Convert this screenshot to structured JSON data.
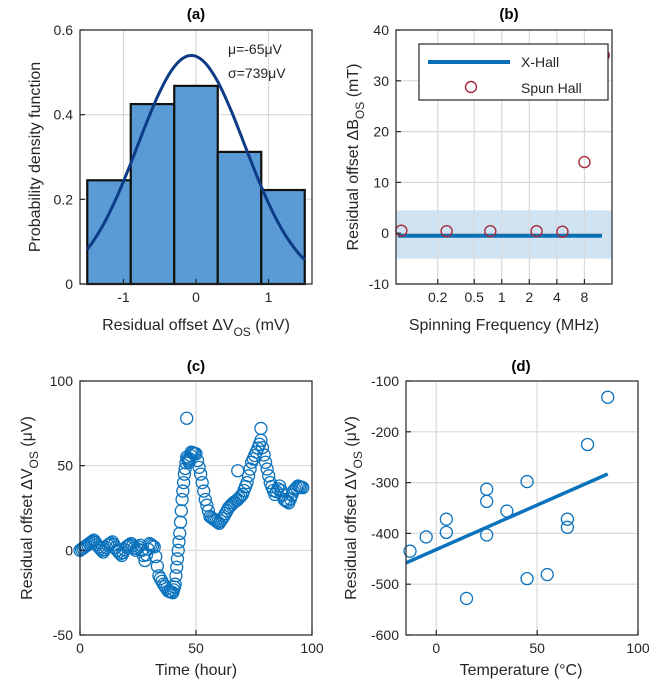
{
  "colors": {
    "bar_fill": "#5a9bd5",
    "bar_edge": "#111111",
    "fit_line": "#0d3b86",
    "xhall_line": "#0b6fb8",
    "band_fill": "#cfe3f3",
    "spun_marker": "#a42c3a",
    "scatter_marker": "#0b72bd",
    "grid": "#d9d9d9"
  },
  "chart_data": [
    {
      "id": "a",
      "type": "bar",
      "title": "(a)",
      "xlabel": "Residual offset ΔV",
      "xlabel_sub": "OS",
      "xlabel_unit": " (mV)",
      "ylabel": "Probability density function",
      "xlim": [
        -1.6,
        1.6
      ],
      "ylim": [
        0,
        0.6
      ],
      "xticks": [
        -1,
        0,
        1
      ],
      "xticklabels": [
        "-1",
        "0",
        "1"
      ],
      "yticks": [
        0,
        0.2,
        0.4,
        0.6
      ],
      "yticklabels": [
        "0",
        "0.2",
        "0.4",
        "0.6"
      ],
      "bin_edges": [
        -1.5,
        -0.9,
        -0.3,
        0.3,
        0.9,
        1.5
      ],
      "values": [
        0.245,
        0.425,
        0.468,
        0.312,
        0.222
      ],
      "fit": {
        "type": "normal",
        "mu_mV": -0.065,
        "sigma_mV": 0.739
      },
      "annotations": [
        "μ=-65μV",
        "σ=739μV"
      ],
      "grid": true
    },
    {
      "id": "b",
      "type": "scatter",
      "title": "(b)",
      "xlabel": "Spinning Frequency (MHz)",
      "ylabel": "Residual offset ΔB",
      "ylabel_sub": "OS",
      "ylabel_unit": " (mT)",
      "xscale": "log",
      "xlim": [
        0.07,
        16
      ],
      "ylim": [
        -10,
        40
      ],
      "xticks": [
        0.2,
        0.5,
        1,
        2,
        4,
        8
      ],
      "xticklabels": [
        "0.2",
        "0.5",
        "1",
        "2",
        "4",
        "8"
      ],
      "yticks": [
        -10,
        0,
        10,
        20,
        30,
        40
      ],
      "yticklabels": [
        "-10",
        "0",
        "10",
        "20",
        "30",
        "40"
      ],
      "series": [
        {
          "name": "X-Hall",
          "kind": "line",
          "y": -0.5,
          "band": [
            -5,
            4.5
          ]
        },
        {
          "name": "Spun Hall",
          "kind": "points",
          "x": [
            0.08,
            0.25,
            0.75,
            2.4,
            4.6,
            8,
            13
          ],
          "y": [
            0.5,
            0.4,
            0.4,
            0.4,
            0.3,
            14,
            35
          ]
        }
      ],
      "legend": "top-left",
      "grid": true
    },
    {
      "id": "c",
      "type": "scatter",
      "title": "(c)",
      "xlabel": "Time (hour)",
      "ylabel": "Residual offset ΔV",
      "ylabel_sub": "OS",
      "ylabel_unit": " (μV)",
      "xlim": [
        0,
        100
      ],
      "ylim": [
        -50,
        100
      ],
      "xticks": [
        0,
        50,
        100
      ],
      "xticklabels": [
        "0",
        "50",
        "100"
      ],
      "yticks": [
        -50,
        0,
        50,
        100
      ],
      "yticklabels": [
        "-50",
        "0",
        "50",
        "100"
      ],
      "x": [
        0,
        2,
        4,
        6,
        8,
        10,
        12,
        14,
        16,
        18,
        20,
        22,
        24,
        26,
        28,
        30,
        32,
        34,
        36,
        38,
        40,
        41,
        42,
        43,
        44,
        45,
        46,
        47,
        48,
        50,
        52,
        54,
        56,
        58,
        60,
        62,
        64,
        66,
        68,
        70,
        72,
        74,
        76,
        78,
        80,
        82,
        84,
        86,
        88,
        90,
        92,
        94,
        96
      ],
      "y": [
        0,
        2,
        4,
        6,
        2,
        -1,
        3,
        5,
        0,
        -3,
        2,
        4,
        0,
        3,
        -6,
        4,
        2,
        -15,
        -20,
        -24,
        -25,
        -20,
        -5,
        10,
        30,
        45,
        55,
        52,
        58,
        57,
        45,
        30,
        20,
        18,
        16,
        20,
        25,
        28,
        30,
        33,
        40,
        52,
        58,
        65,
        52,
        40,
        33,
        38,
        30,
        28,
        35,
        38,
        37
      ],
      "outliers": {
        "x": [
          46,
          68,
          78
        ],
        "y": [
          78,
          47,
          72
        ]
      },
      "grid": true
    },
    {
      "id": "d",
      "type": "scatter",
      "title": "(d)",
      "xlabel": "Temperature (°C)",
      "ylabel": "Residual offset ΔV",
      "ylabel_sub": "OS",
      "ylabel_unit": " (μV)",
      "xlim": [
        -15,
        100
      ],
      "ylim": [
        -600,
        -100
      ],
      "xticks": [
        0,
        50,
        100
      ],
      "xticklabels": [
        "0",
        "50",
        "100"
      ],
      "yticks": [
        -600,
        -500,
        -400,
        -300,
        -200,
        -100
      ],
      "yticklabels": [
        "-600",
        "-500",
        "-400",
        "-300",
        "-200",
        "-100"
      ],
      "x": [
        -13,
        -5,
        5,
        5,
        15,
        25,
        25,
        25,
        35,
        45,
        45,
        55,
        65,
        65,
        75,
        85
      ],
      "y": [
        -435,
        -407,
        -372,
        -398,
        -528,
        -313,
        -337,
        -403,
        -356,
        -298,
        -489,
        -481,
        -372,
        -388,
        -225,
        -132
      ],
      "fit": {
        "x": [
          -15,
          85
        ],
        "y": [
          -458,
          -283
        ]
      },
      "grid": true
    }
  ]
}
